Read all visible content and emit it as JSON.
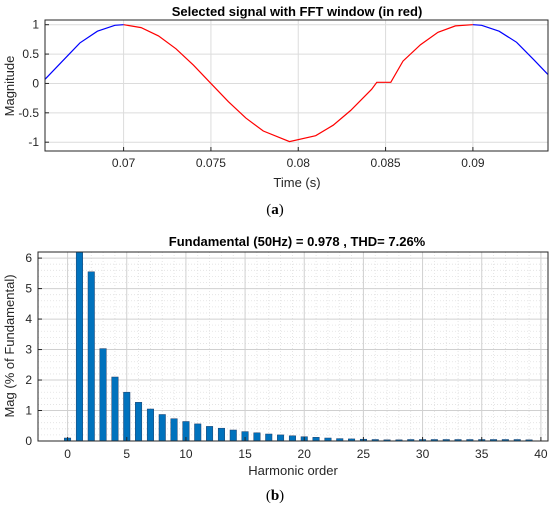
{
  "chart_data": [
    {
      "type": "line",
      "title": "Selected signal with FFT window (in red)",
      "xlabel": "Time (s)",
      "ylabel": "Magnitude",
      "xlim": [
        0.0655,
        0.0943
      ],
      "ylim": [
        -1.15,
        1.08
      ],
      "xticks": [
        0.07,
        0.075,
        0.08,
        0.085,
        0.09
      ],
      "xtick_labels": [
        "0.07",
        "0.075",
        "0.08",
        "0.085",
        "0.09"
      ],
      "yticks": [
        -1,
        -0.5,
        0,
        0.5,
        1
      ],
      "ytick_labels": [
        "-1",
        "-0.5",
        "0",
        "0.5",
        "1"
      ],
      "grid": true,
      "series": [
        {
          "color": "#0000ff",
          "x": [
            0.0655,
            0.0665,
            0.0675,
            0.0685,
            0.0695,
            0.07
          ],
          "y": [
            0.07,
            0.38,
            0.69,
            0.89,
            0.99,
            1.0
          ]
        },
        {
          "color": "#ff0000",
          "x": [
            0.07,
            0.071,
            0.072,
            0.073,
            0.074,
            0.075,
            0.076,
            0.077,
            0.078,
            0.0795,
            0.081,
            0.082,
            0.083,
            0.0842,
            0.0845,
            0.0853,
            0.086,
            0.087,
            0.088,
            0.089,
            0.09
          ],
          "y": [
            1.0,
            0.95,
            0.81,
            0.59,
            0.31,
            0.0,
            -0.31,
            -0.59,
            -0.81,
            -0.99,
            -0.89,
            -0.71,
            -0.46,
            -0.1,
            0.02,
            0.02,
            0.38,
            0.66,
            0.87,
            0.98,
            1.0
          ]
        },
        {
          "color": "#0000ff",
          "x": [
            0.09,
            0.0905,
            0.0915,
            0.0925,
            0.0935,
            0.0943
          ],
          "y": [
            1.0,
            0.99,
            0.89,
            0.7,
            0.4,
            0.15
          ]
        }
      ]
    },
    {
      "type": "bar",
      "title": "Fundamental (50Hz) = 0.978 , THD= 7.26%",
      "xlabel": "Harmonic order",
      "ylabel": "Mag (% of Fundamental)",
      "xlim": [
        -2.5,
        40.6
      ],
      "ylim": [
        0,
        6.2
      ],
      "xticks": [
        0,
        5,
        10,
        15,
        20,
        25,
        30,
        35,
        40
      ],
      "xtick_labels": [
        "0",
        "5",
        "10",
        "15",
        "20",
        "25",
        "30",
        "35",
        "40"
      ],
      "yticks": [
        0,
        1,
        2,
        3,
        4,
        5,
        6
      ],
      "ytick_labels": [
        "0",
        "1",
        "2",
        "3",
        "4",
        "5",
        "6"
      ],
      "grid": true,
      "bar_color": "#0072bd",
      "categories": [
        0,
        1,
        2,
        3,
        4,
        5,
        6,
        7,
        8,
        9,
        10,
        11,
        12,
        13,
        14,
        15,
        16,
        17,
        18,
        19,
        20,
        21,
        22,
        23,
        24,
        25,
        26,
        27,
        28,
        29,
        30,
        31,
        32,
        33,
        34,
        35,
        36,
        37,
        38,
        39
      ],
      "values": [
        0.1,
        6.2,
        5.55,
        3.03,
        2.1,
        1.6,
        1.27,
        1.05,
        0.87,
        0.73,
        0.64,
        0.56,
        0.48,
        0.42,
        0.36,
        0.31,
        0.27,
        0.23,
        0.2,
        0.17,
        0.14,
        0.12,
        0.1,
        0.08,
        0.07,
        0.06,
        0.05,
        0.04,
        0.04,
        0.05,
        0.05,
        0.05,
        0.05,
        0.05,
        0.05,
        0.05,
        0.05,
        0.05,
        0.05,
        0.04
      ]
    }
  ],
  "captions": {
    "a": "a",
    "b": "b"
  }
}
